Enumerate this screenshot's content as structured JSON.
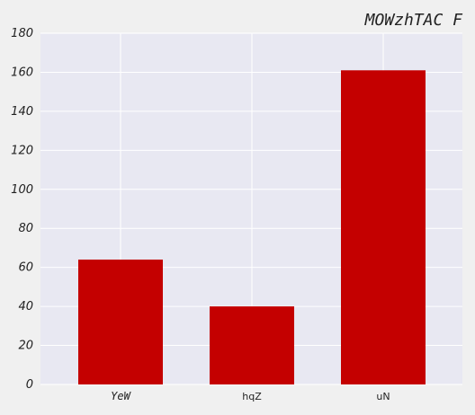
{
  "chart_data": {
    "type": "bar",
    "title": "MOWzhTAC F",
    "categories": [
      "YeW",
      "hqZ",
      "uN"
    ],
    "values": [
      64,
      40,
      161
    ],
    "ylim": [
      0,
      180
    ],
    "yticks": [
      0,
      20,
      40,
      60,
      80,
      100,
      120,
      140,
      160,
      180
    ],
    "xlabel": "",
    "ylabel": "",
    "grid": true,
    "colors": {
      "bar": "#c40000",
      "plot_bg": "#e8e8f2",
      "grid": "#ffffff",
      "page_bg": "#f0f0f0"
    }
  }
}
